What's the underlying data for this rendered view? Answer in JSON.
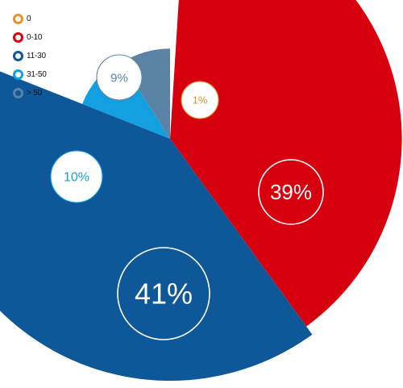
{
  "chart_data": {
    "type": "pie",
    "variant": "polar-area",
    "title": "",
    "categories": [
      "0",
      "0-10",
      "11-30",
      "31-50",
      "> 50"
    ],
    "values": [
      1,
      39,
      41,
      10,
      9
    ],
    "labels": [
      "1%",
      "39%",
      "41%",
      "10%",
      "9%"
    ],
    "colors": [
      "#e8912a",
      "#d7000f",
      "#0e5798",
      "#139fe0",
      "#5a83a6"
    ],
    "legend_position": "top-left",
    "grid": false
  }
}
